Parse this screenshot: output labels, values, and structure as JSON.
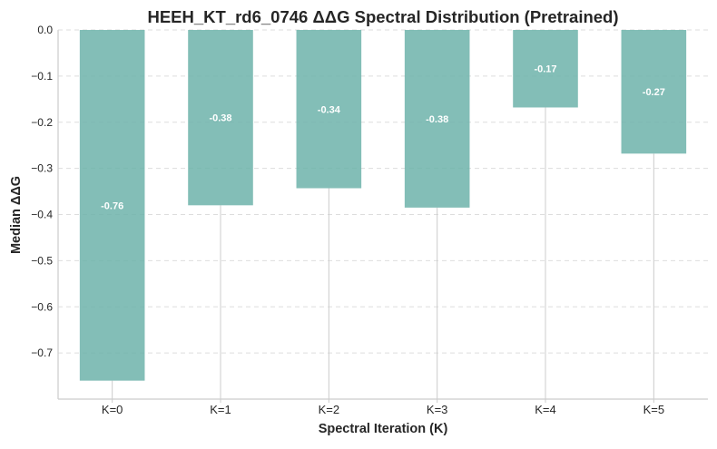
{
  "chart_data": {
    "type": "bar",
    "title": "HEEH_KT_rd6_0746 ΔΔG Spectral Distribution (Pretrained)",
    "xlabel": "Spectral Iteration (K)",
    "ylabel": "Median ΔΔG",
    "categories": [
      "K=0",
      "K=1",
      "K=2",
      "K=3",
      "K=4",
      "K=5"
    ],
    "values": [
      -0.76,
      -0.38,
      -0.343,
      -0.385,
      -0.168,
      -0.268
    ],
    "data_labels": [
      "-0.76",
      "-0.38",
      "-0.34",
      "-0.38",
      "-0.17",
      "-0.27"
    ],
    "ylim": [
      -0.8,
      0.0
    ],
    "yticks": [
      0.0,
      -0.1,
      -0.2,
      -0.3,
      -0.4,
      -0.5,
      -0.6,
      -0.7
    ],
    "ytick_labels": [
      "0.0",
      "−0.1",
      "−0.2",
      "−0.3",
      "−0.4",
      "−0.5",
      "−0.6",
      "−0.7"
    ],
    "grid": true,
    "legend": "none",
    "bar_color": "#6db3aa"
  }
}
